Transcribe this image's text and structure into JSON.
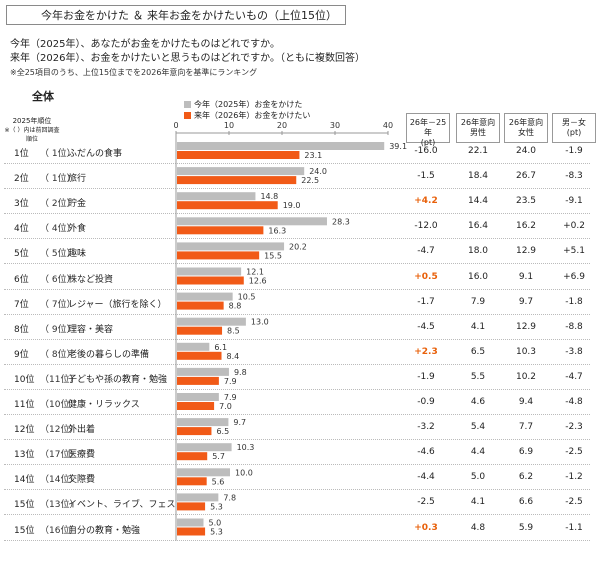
{
  "header": {
    "title": "今年お金をかけた ＆ 来年お金をかけたいもの（上位15位）",
    "question1": "今年（2025年）、あなたがお金をかけたものはどれですか。",
    "question2": "来年（2026年）、お金をかけたいと思うものはどれですか。（ともに複数回答）",
    "note": "※全25項目のうち、上位15位までを2026年意向を基準にランキング",
    "section": "全体",
    "rank_head1": "2025年順位",
    "rank_head2": "※（ ）内は前回調査順位"
  },
  "columns": {
    "diff": {
      "line1": "26年－25年",
      "line2": "(pt)"
    },
    "male": {
      "line1": "26年意向",
      "line2": "男性"
    },
    "female": {
      "line1": "26年意向",
      "line2": "女性"
    },
    "gap": {
      "line1": "男－女",
      "line2": "(pt)"
    }
  },
  "chart_data": {
    "type": "bar",
    "orientation": "horizontal",
    "x_ticks": [
      0,
      10,
      20,
      30,
      40
    ],
    "xlim": [
      0,
      40
    ],
    "colors": {
      "2025": "#bdbdbd",
      "2026": "#f15a17"
    },
    "legend_position": "top",
    "series": [
      {
        "name": "今年（2025年）お金をかけた",
        "values": [
          39.1,
          24.0,
          14.8,
          28.3,
          20.2,
          12.1,
          10.5,
          13.0,
          6.1,
          9.8,
          7.9,
          9.7,
          10.3,
          10.0,
          7.8,
          5.0
        ]
      },
      {
        "name": "来年（2026年）お金をかけたい",
        "values": [
          23.1,
          22.5,
          19.0,
          16.3,
          15.5,
          12.6,
          8.8,
          8.5,
          8.4,
          7.9,
          7.0,
          6.5,
          5.7,
          5.6,
          5.3,
          5.3
        ]
      }
    ],
    "categories": [
      "ふだんの食事",
      "旅行",
      "貯金",
      "外食",
      "趣味",
      "株など投資",
      "レジャー（旅行を除く）",
      "理容・美容",
      "老後の暮らしの準備",
      "子どもや孫の教育・勉強",
      "健康・リラックス",
      "外出着",
      "医療費",
      "交際費",
      "イベント、ライブ、フェス",
      "自分の教育・勉強"
    ],
    "rows": [
      {
        "rank": "1位",
        "prev": "（ 1位）",
        "diff": "-16.0",
        "male": "22.1",
        "female": "24.0",
        "gap": "-1.9",
        "diff_positive": false
      },
      {
        "rank": "2位",
        "prev": "（ 1位）",
        "diff": "-1.5",
        "male": "18.4",
        "female": "26.7",
        "gap": "-8.3",
        "diff_positive": false
      },
      {
        "rank": "3位",
        "prev": "（ 2位）",
        "diff": "+4.2",
        "male": "14.4",
        "female": "23.5",
        "gap": "-9.1",
        "diff_positive": true
      },
      {
        "rank": "4位",
        "prev": "（ 4位）",
        "diff": "-12.0",
        "male": "16.4",
        "female": "16.2",
        "gap": "+0.2",
        "diff_positive": false
      },
      {
        "rank": "5位",
        "prev": "（ 5位）",
        "diff": "-4.7",
        "male": "18.0",
        "female": "12.9",
        "gap": "+5.1",
        "diff_positive": false
      },
      {
        "rank": "6位",
        "prev": "（ 6位）",
        "diff": "+0.5",
        "male": "16.0",
        "female": "9.1",
        "gap": "+6.9",
        "diff_positive": true
      },
      {
        "rank": "7位",
        "prev": "（ 7位）",
        "diff": "-1.7",
        "male": "7.9",
        "female": "9.7",
        "gap": "-1.8",
        "diff_positive": false
      },
      {
        "rank": "8位",
        "prev": "（ 9位）",
        "diff": "-4.5",
        "male": "4.1",
        "female": "12.9",
        "gap": "-8.8",
        "diff_positive": false
      },
      {
        "rank": "9位",
        "prev": "（ 8位）",
        "diff": "+2.3",
        "male": "6.5",
        "female": "10.3",
        "gap": "-3.8",
        "diff_positive": true
      },
      {
        "rank": "10位",
        "prev": "（11位）",
        "diff": "-1.9",
        "male": "5.5",
        "female": "10.2",
        "gap": "-4.7",
        "diff_positive": false
      },
      {
        "rank": "11位",
        "prev": "（10位）",
        "diff": "-0.9",
        "male": "4.6",
        "female": "9.4",
        "gap": "-4.8",
        "diff_positive": false
      },
      {
        "rank": "12位",
        "prev": "（12位）",
        "diff": "-3.2",
        "male": "5.4",
        "female": "7.7",
        "gap": "-2.3",
        "diff_positive": false
      },
      {
        "rank": "13位",
        "prev": "（17位）",
        "diff": "-4.6",
        "male": "4.4",
        "female": "6.9",
        "gap": "-2.5",
        "diff_positive": false
      },
      {
        "rank": "14位",
        "prev": "（14位）",
        "diff": "-4.4",
        "male": "5.0",
        "female": "6.2",
        "gap": "-1.2",
        "diff_positive": false
      },
      {
        "rank": "15位",
        "prev": "（13位）",
        "diff": "-2.5",
        "male": "4.1",
        "female": "6.6",
        "gap": "-2.5",
        "diff_positive": false
      },
      {
        "rank": "15位",
        "prev": "（16位）",
        "diff": "+0.3",
        "male": "4.8",
        "female": "5.9",
        "gap": "-1.1",
        "diff_positive": true
      }
    ]
  }
}
